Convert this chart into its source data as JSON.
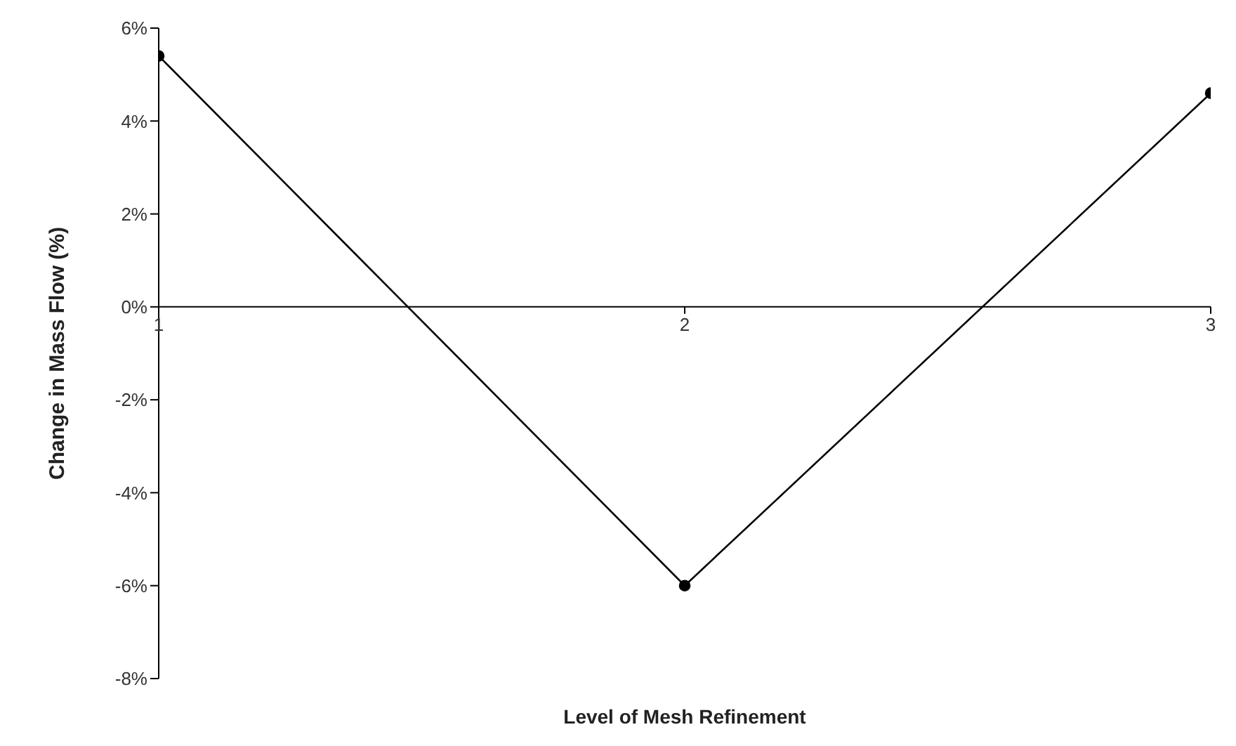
{
  "chart_data": {
    "type": "line",
    "xlabel": "Level of Mesh Refinement",
    "ylabel": "Change in Mass Flow (%)",
    "x": [
      1,
      2,
      3
    ],
    "series": [
      {
        "color": "#000000",
        "values": [
          5.4,
          -6.0,
          4.6
        ]
      }
    ],
    "xlim": [
      1,
      3
    ],
    "xticks": [
      1,
      2,
      3
    ],
    "ylim": [
      -8,
      6
    ],
    "yticks": [
      {
        "value": -8,
        "label": "-8%"
      },
      {
        "value": -6,
        "label": "-6%"
      },
      {
        "value": -4,
        "label": "-4%"
      },
      {
        "value": -2,
        "label": "-2%"
      },
      {
        "value": 0,
        "label": "0%"
      },
      {
        "value": 2,
        "label": "2%"
      },
      {
        "value": 4,
        "label": "4%"
      },
      {
        "value": 6,
        "label": "6%"
      }
    ],
    "grid": false,
    "marker": "circle",
    "line_style": "solid"
  }
}
